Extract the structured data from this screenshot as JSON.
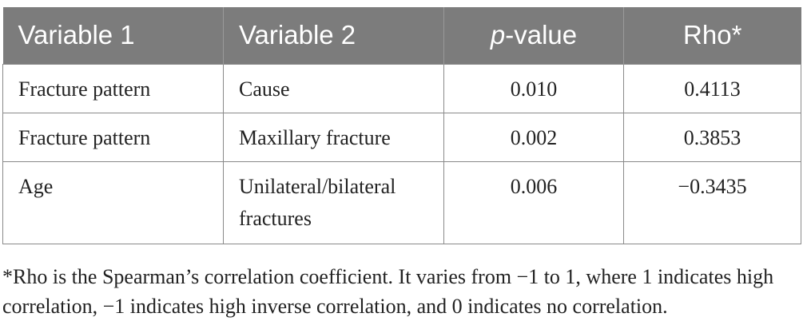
{
  "table": {
    "headers": [
      {
        "prefix": "Variable 1",
        "italic": "",
        "suffix": ""
      },
      {
        "prefix": "Variable 2",
        "italic": "",
        "suffix": ""
      },
      {
        "prefix": "",
        "italic": "p",
        "suffix": "-value"
      },
      {
        "prefix": "Rho*",
        "italic": "",
        "suffix": ""
      }
    ],
    "rows": [
      [
        "Fracture pattern",
        "Cause",
        "0.010",
        "0.4113"
      ],
      [
        "Fracture pattern",
        "Maxillary fracture",
        "0.002",
        "0.3853"
      ],
      [
        "Age",
        "Unilateral/bilateral fractures",
        "0.006",
        "−0.3435"
      ]
    ]
  },
  "footnote": "*Rho is the Spearman’s correlation coefficient. It varies from −1 to 1, where 1 indicates high correlation, −1 indicates high inverse correlation, and 0 indicates no correlation."
}
